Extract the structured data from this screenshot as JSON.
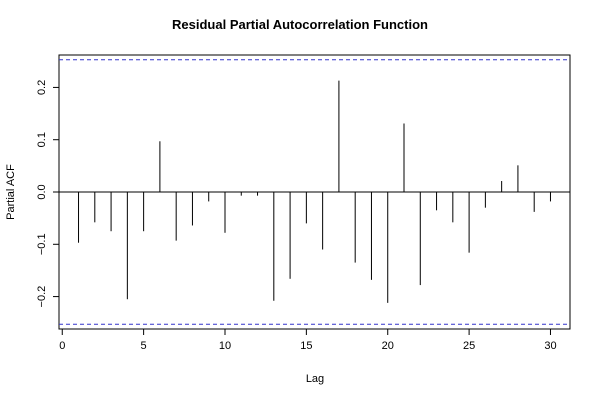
{
  "chart_data": {
    "type": "bar",
    "title": "Residual Partial Autocorrelation Function",
    "xlabel": "Lag",
    "ylabel": "Partial ACF",
    "xlim": [
      -0.2,
      31.2
    ],
    "ylim": [
      -0.262,
      0.262
    ],
    "x_ticks": [
      0,
      5,
      10,
      15,
      20,
      25,
      30
    ],
    "x_tick_labels": [
      "0",
      "5",
      "10",
      "15",
      "20",
      "25",
      "30"
    ],
    "y_ticks": [
      -0.2,
      -0.1,
      0.0,
      0.1,
      0.2
    ],
    "y_tick_labels": [
      "−0.2",
      "−0.1",
      "0.0",
      "0.1",
      "0.2"
    ],
    "confidence_bounds": [
      0.253,
      -0.253
    ],
    "bound_color": "#3333cc",
    "lags": [
      1,
      2,
      3,
      4,
      5,
      6,
      7,
      8,
      9,
      10,
      11,
      12,
      13,
      14,
      15,
      16,
      17,
      18,
      19,
      20,
      21,
      22,
      23,
      24,
      25,
      26,
      27,
      28,
      29,
      30
    ],
    "values": [
      -0.097,
      -0.058,
      -0.075,
      -0.205,
      -0.075,
      0.097,
      -0.093,
      -0.064,
      -0.018,
      -0.078,
      -0.007,
      -0.007,
      -0.208,
      -0.166,
      -0.06,
      -0.11,
      0.213,
      -0.135,
      -0.168,
      -0.212,
      0.131,
      -0.178,
      -0.035,
      -0.058,
      -0.116,
      -0.03,
      0.021,
      0.051,
      -0.038,
      -0.018
    ],
    "grid": false
  }
}
